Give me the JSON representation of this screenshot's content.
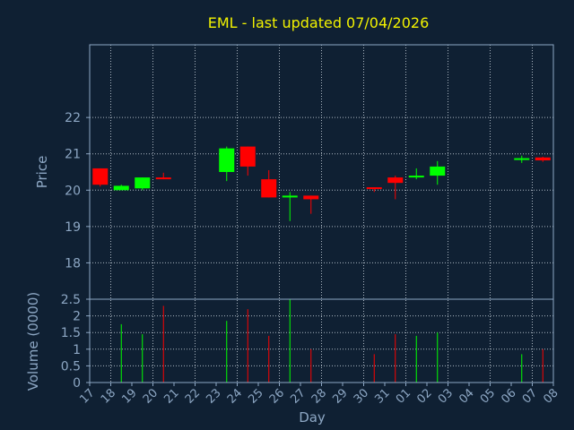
{
  "chart_data": {
    "type": "candlestick",
    "title": "EML - last updated 07/04/2026",
    "xlabel": "Day",
    "price_panel": {
      "ylabel": "Price",
      "ylim": [
        17.0,
        24.0
      ],
      "yticks": [
        "18",
        "19",
        "20",
        "21",
        "22"
      ],
      "grid": true
    },
    "volume_panel": {
      "ylabel": "Volume (0000)",
      "ylim": [
        0,
        2.5
      ],
      "yticks": [
        "0",
        "0.5",
        "1",
        "1.5",
        "2",
        "2.5"
      ],
      "grid": true
    },
    "x_ticks": [
      "17",
      "18",
      "19",
      "20",
      "21",
      "22",
      "23",
      "24",
      "25",
      "26",
      "27",
      "28",
      "29",
      "30",
      "31",
      "01",
      "02",
      "03",
      "04",
      "05",
      "06",
      "07",
      "08"
    ],
    "colors": {
      "up": "#00ff00",
      "down": "#ff0000",
      "title": "#f2f200",
      "axis": "#8da7c4",
      "background": "#0f2033"
    },
    "candles": [
      {
        "day": "17",
        "open": 20.6,
        "high": 20.6,
        "low": 20.1,
        "close": 20.15,
        "volume": 0.0
      },
      {
        "day": "18",
        "open": 20.0,
        "high": 20.15,
        "low": 20.0,
        "close": 20.12,
        "volume": 1.75
      },
      {
        "day": "19",
        "open": 20.05,
        "high": 20.35,
        "low": 20.0,
        "close": 20.35,
        "volume": 1.45
      },
      {
        "day": "20",
        "open": 20.35,
        "high": 20.48,
        "low": 20.3,
        "close": 20.32,
        "volume": 2.3
      },
      {
        "day": "23",
        "open": 20.5,
        "high": 21.2,
        "low": 20.25,
        "close": 21.15,
        "volume": 1.85
      },
      {
        "day": "24",
        "open": 21.2,
        "high": 21.2,
        "low": 20.4,
        "close": 20.65,
        "volume": 2.2
      },
      {
        "day": "25",
        "open": 20.3,
        "high": 20.55,
        "low": 19.8,
        "close": 19.8,
        "volume": 1.4
      },
      {
        "day": "26",
        "open": 19.8,
        "high": 19.95,
        "low": 19.15,
        "close": 19.85,
        "volume": 2.5
      },
      {
        "day": "27",
        "open": 19.85,
        "high": 19.85,
        "low": 19.35,
        "close": 19.75,
        "volume": 1.0
      },
      {
        "day": "30",
        "open": 20.08,
        "high": 20.08,
        "low": 19.95,
        "close": 20.05,
        "volume": 0.85
      },
      {
        "day": "31",
        "open": 20.35,
        "high": 20.4,
        "low": 19.75,
        "close": 20.2,
        "volume": 1.45
      },
      {
        "day": "01",
        "open": 20.35,
        "high": 20.6,
        "low": 20.3,
        "close": 20.4,
        "volume": 1.4
      },
      {
        "day": "02",
        "open": 20.4,
        "high": 20.8,
        "low": 20.15,
        "close": 20.65,
        "volume": 1.5
      },
      {
        "day": "06",
        "open": 20.85,
        "high": 20.95,
        "low": 20.75,
        "close": 20.88,
        "volume": 0.85
      },
      {
        "day": "07",
        "open": 20.9,
        "high": 20.92,
        "low": 20.78,
        "close": 20.82,
        "volume": 1.0
      }
    ]
  }
}
